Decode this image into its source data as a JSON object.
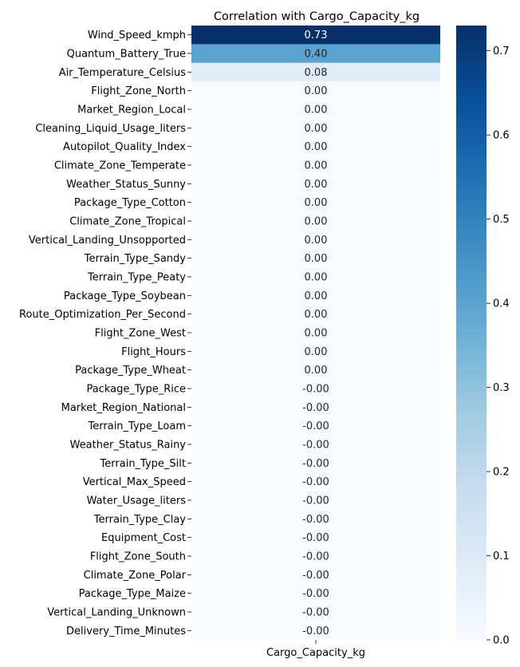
{
  "chart_data": {
    "type": "heatmap",
    "title": "Correlation with Cargo_Capacity_kg",
    "xlabel": "",
    "ylabel": "",
    "columns": [
      "Cargo_Capacity_kg"
    ],
    "rows": [
      {
        "label": "Wind_Speed_kmph",
        "value": 0.73,
        "text": "0.73"
      },
      {
        "label": "Quantum_Battery_True",
        "value": 0.4,
        "text": "0.40"
      },
      {
        "label": "Air_Temperature_Celsius",
        "value": 0.08,
        "text": "0.08"
      },
      {
        "label": "Flight_Zone_North",
        "value": 0.0,
        "text": "0.00"
      },
      {
        "label": "Market_Region_Local",
        "value": 0.0,
        "text": "0.00"
      },
      {
        "label": "Cleaning_Liquid_Usage_liters",
        "value": 0.0,
        "text": "0.00"
      },
      {
        "label": "Autopilot_Quality_Index",
        "value": 0.0,
        "text": "0.00"
      },
      {
        "label": "Climate_Zone_Temperate",
        "value": 0.0,
        "text": "0.00"
      },
      {
        "label": "Weather_Status_Sunny",
        "value": 0.0,
        "text": "0.00"
      },
      {
        "label": "Package_Type_Cotton",
        "value": 0.0,
        "text": "0.00"
      },
      {
        "label": "Climate_Zone_Tropical",
        "value": 0.0,
        "text": "0.00"
      },
      {
        "label": "Vertical_Landing_Unsopported",
        "value": 0.0,
        "text": "0.00"
      },
      {
        "label": "Terrain_Type_Sandy",
        "value": 0.0,
        "text": "0.00"
      },
      {
        "label": "Terrain_Type_Peaty",
        "value": 0.0,
        "text": "0.00"
      },
      {
        "label": "Package_Type_Soybean",
        "value": 0.0,
        "text": "0.00"
      },
      {
        "label": "Route_Optimization_Per_Second",
        "value": 0.0,
        "text": "0.00"
      },
      {
        "label": "Flight_Zone_West",
        "value": 0.0,
        "text": "0.00"
      },
      {
        "label": "Flight_Hours",
        "value": 0.0,
        "text": "0.00"
      },
      {
        "label": "Package_Type_Wheat",
        "value": 0.0,
        "text": "0.00"
      },
      {
        "label": "Package_Type_Rice",
        "value": 0.0,
        "text": "-0.00"
      },
      {
        "label": "Market_Region_National",
        "value": 0.0,
        "text": "-0.00"
      },
      {
        "label": "Terrain_Type_Loam",
        "value": 0.0,
        "text": "-0.00"
      },
      {
        "label": "Weather_Status_Rainy",
        "value": 0.0,
        "text": "-0.00"
      },
      {
        "label": "Terrain_Type_Silt",
        "value": 0.0,
        "text": "-0.00"
      },
      {
        "label": "Vertical_Max_Speed",
        "value": 0.0,
        "text": "-0.00"
      },
      {
        "label": "Water_Usage_liters",
        "value": 0.0,
        "text": "-0.00"
      },
      {
        "label": "Terrain_Type_Clay",
        "value": 0.0,
        "text": "-0.00"
      },
      {
        "label": "Equipment_Cost",
        "value": 0.0,
        "text": "-0.00"
      },
      {
        "label": "Flight_Zone_South",
        "value": 0.0,
        "text": "-0.00"
      },
      {
        "label": "Climate_Zone_Polar",
        "value": 0.0,
        "text": "-0.00"
      },
      {
        "label": "Package_Type_Maize",
        "value": 0.0,
        "text": "-0.00"
      },
      {
        "label": "Vertical_Landing_Unknown",
        "value": 0.0,
        "text": "-0.00"
      },
      {
        "label": "Delivery_Time_Minutes",
        "value": 0.0,
        "text": "-0.00"
      }
    ],
    "colorbar": {
      "range": [
        0.0,
        0.73
      ],
      "ticks": [
        0.0,
        0.1,
        0.2,
        0.3,
        0.4,
        0.5,
        0.6,
        0.7
      ],
      "tick_labels": [
        "0.0",
        "0.1",
        "0.2",
        "0.3",
        "0.4",
        "0.5",
        "0.6",
        "0.7"
      ]
    },
    "colormap": "Blues",
    "colormap_stops": [
      "#f7fbff",
      "#deebf7",
      "#c6dbef",
      "#9ecae1",
      "#6baed6",
      "#4292c6",
      "#2171b5",
      "#08519c",
      "#08306b"
    ],
    "grid": false
  }
}
